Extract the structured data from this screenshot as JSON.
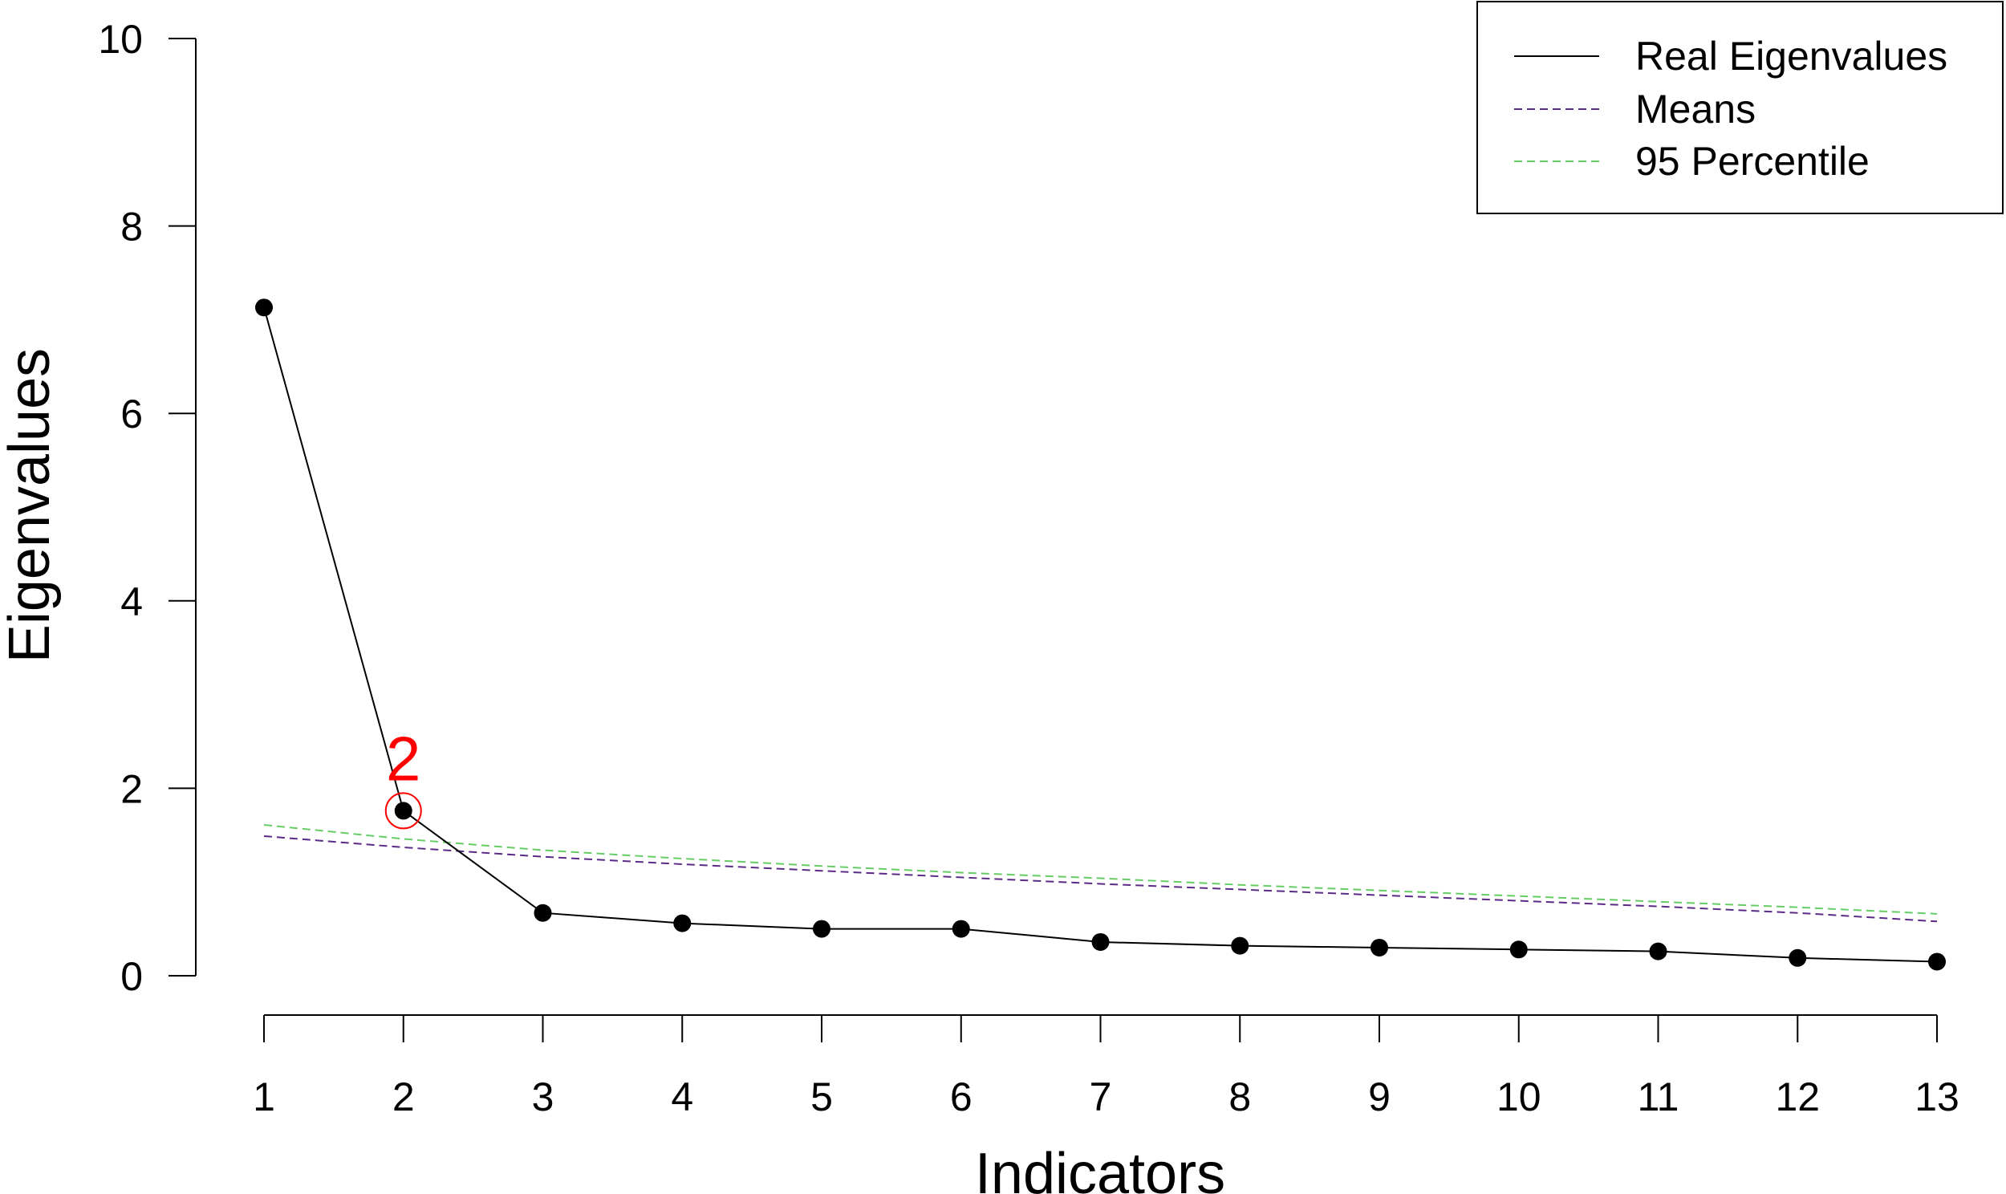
{
  "chart_data": {
    "type": "line",
    "title": "",
    "xlabel": "Indicators",
    "ylabel": "Eigenvalues",
    "x": [
      1,
      2,
      3,
      4,
      5,
      6,
      7,
      8,
      9,
      10,
      11,
      12,
      13
    ],
    "xticks": [
      "1",
      "2",
      "3",
      "4",
      "5",
      "6",
      "7",
      "8",
      "9",
      "10",
      "11",
      "12",
      "13"
    ],
    "yticks": [
      "0",
      "2",
      "4",
      "6",
      "8",
      "10"
    ],
    "xlim": [
      1,
      13
    ],
    "ylim": [
      0,
      10
    ],
    "grid": false,
    "legend_position": "top-right",
    "series": [
      {
        "name": "Real Eigenvalues",
        "style": "solid",
        "color": "#000000",
        "markers": true,
        "values": [
          7.13,
          1.76,
          0.67,
          0.56,
          0.5,
          0.5,
          0.36,
          0.32,
          0.3,
          0.28,
          0.26,
          0.19,
          0.15
        ]
      },
      {
        "name": "Means",
        "style": "dashed",
        "color": "#5b2a86",
        "markers": false,
        "values": [
          1.49,
          1.37,
          1.27,
          1.19,
          1.12,
          1.05,
          0.98,
          0.92,
          0.86,
          0.8,
          0.74,
          0.67,
          0.58
        ]
      },
      {
        "name": "95 Percentile",
        "style": "dashed",
        "color": "#66cc66",
        "markers": false,
        "values": [
          1.61,
          1.46,
          1.34,
          1.25,
          1.17,
          1.1,
          1.04,
          0.97,
          0.91,
          0.85,
          0.79,
          0.73,
          0.66
        ]
      }
    ],
    "annotation": {
      "label": "2",
      "x": 2,
      "y": 1.76,
      "color": "#ff0000"
    }
  }
}
